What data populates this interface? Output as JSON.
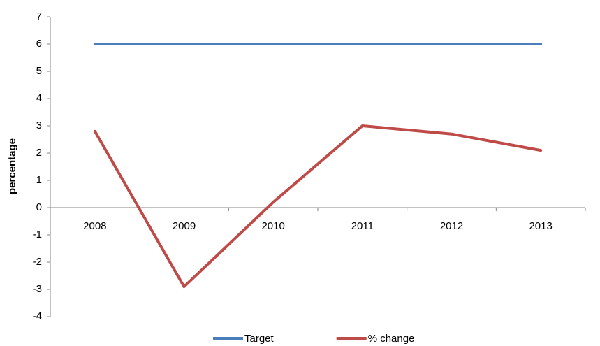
{
  "chart_data": {
    "type": "line",
    "y_label": "percentage",
    "categories": [
      "2008",
      "2009",
      "2010",
      "2011",
      "2012",
      "2013"
    ],
    "series": [
      {
        "name": "Target",
        "color": "#4a7ebb",
        "values": [
          6,
          6,
          6,
          6,
          6,
          6
        ]
      },
      {
        "name": "% change",
        "color": "#be4b48",
        "values": [
          2.8,
          -2.9,
          0.2,
          3.0,
          2.7,
          2.1
        ]
      }
    ],
    "ylim": [
      -4,
      7
    ],
    "yticks": [
      -4,
      -3,
      -2,
      -1,
      0,
      1,
      2,
      3,
      4,
      5,
      6,
      7
    ],
    "grid": false,
    "legend": "bottom"
  }
}
